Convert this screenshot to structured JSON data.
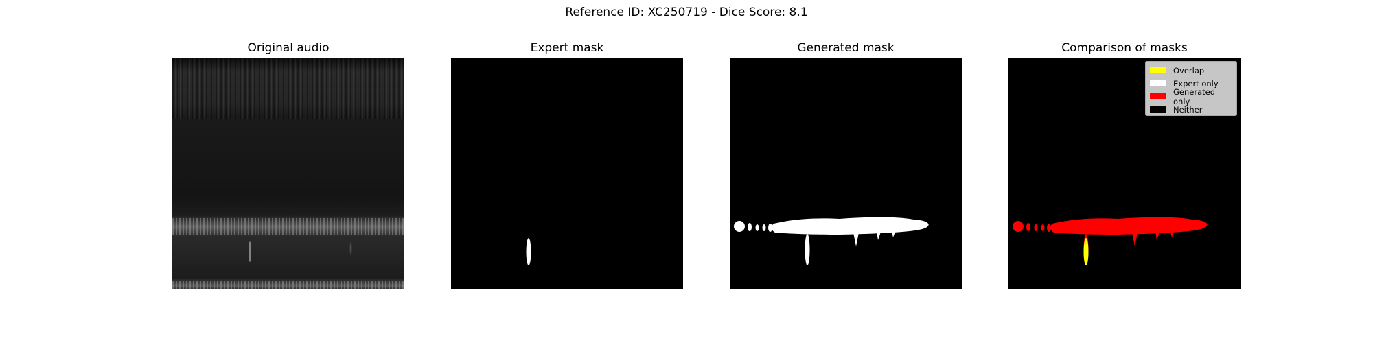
{
  "figure": {
    "title": "Reference ID: XC250719 - Dice Score: 8.1"
  },
  "panels": [
    {
      "title": "Original audio"
    },
    {
      "title": "Expert mask"
    },
    {
      "title": "Generated mask"
    },
    {
      "title": "Comparison of masks"
    }
  ],
  "legend": {
    "items": [
      {
        "label": "Overlap",
        "color": "#ffff00"
      },
      {
        "label": "Expert only",
        "color": "#ffffff"
      },
      {
        "label": "Generated only",
        "color": "#ff0000"
      },
      {
        "label": "Neither",
        "color": "#000000"
      }
    ]
  },
  "colors": {
    "background": "#000000",
    "mask": "#ffffff",
    "overlap": "#ffff00",
    "generated_only": "#ff0000"
  }
}
